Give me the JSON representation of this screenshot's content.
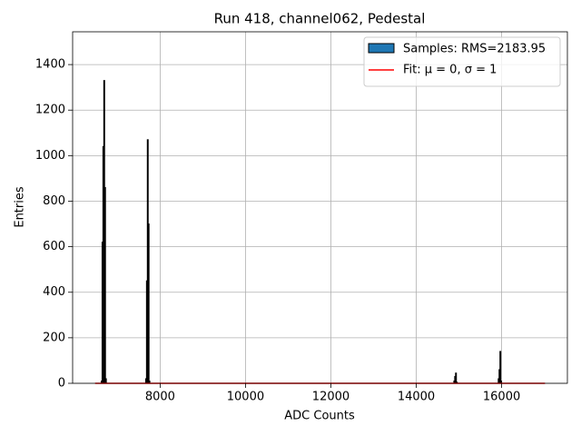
{
  "chart_data": {
    "type": "histogram",
    "title": "Run 418, channel062, Pedestal",
    "xlabel": "ADC Counts",
    "ylabel": "Entries",
    "name": "Samples: RMS=2183.95",
    "color": "#1f77b4",
    "edgecolor": "#000000",
    "bins": [
      6476,
      6620,
      6640,
      6660,
      6680,
      6700,
      6720,
      6740,
      7660,
      7680,
      7700,
      7720,
      7740,
      7760,
      14880,
      14900,
      14920,
      14940,
      14960,
      15920,
      15940,
      15960,
      15980,
      16000,
      17016
    ],
    "counts": [
      0,
      10,
      620,
      1040,
      1330,
      860,
      20,
      0,
      20,
      450,
      1070,
      700,
      10,
      0,
      10,
      30,
      45,
      5,
      0,
      20,
      60,
      140,
      10,
      0
    ],
    "fit": {
      "name": "Fit: μ = 0, σ = 1",
      "color": "#ff0000",
      "x": [
        6476,
        17016
      ],
      "values": [
        0,
        0
      ]
    },
    "xlim": [
      5950,
      17540
    ],
    "ylim": [
      0,
      1544
    ],
    "xticks": [
      8000,
      10000,
      12000,
      14000,
      16000
    ],
    "yticks": [
      0,
      200,
      400,
      600,
      800,
      1000,
      1200,
      1400
    ],
    "grid": true,
    "legend": "upper right"
  }
}
